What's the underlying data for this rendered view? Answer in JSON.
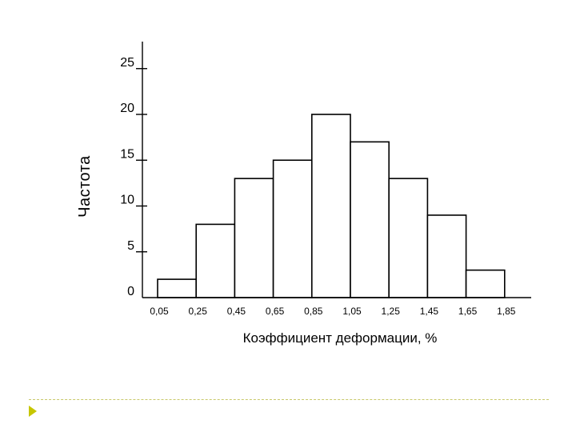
{
  "chart_data": {
    "type": "bar",
    "ylabel": "Частота",
    "xlabel": "Коэффициент деформации, %",
    "x_ticks": [
      "0,05",
      "0,25",
      "0,45",
      "0,65",
      "0,85",
      "1,05",
      "1,25",
      "1,45",
      "1,65",
      "1,85"
    ],
    "y_ticks": [
      0,
      5,
      10,
      15,
      20,
      25
    ],
    "values": [
      2,
      8,
      13,
      15,
      20,
      17,
      13,
      9,
      3
    ],
    "ylim": [
      0,
      28
    ],
    "grid": false
  },
  "colors": {
    "bar_fill": "#ffffff",
    "bar_stroke": "#000000",
    "footer_line": "#c8c86a",
    "footer_arrow": "#c6c600"
  }
}
